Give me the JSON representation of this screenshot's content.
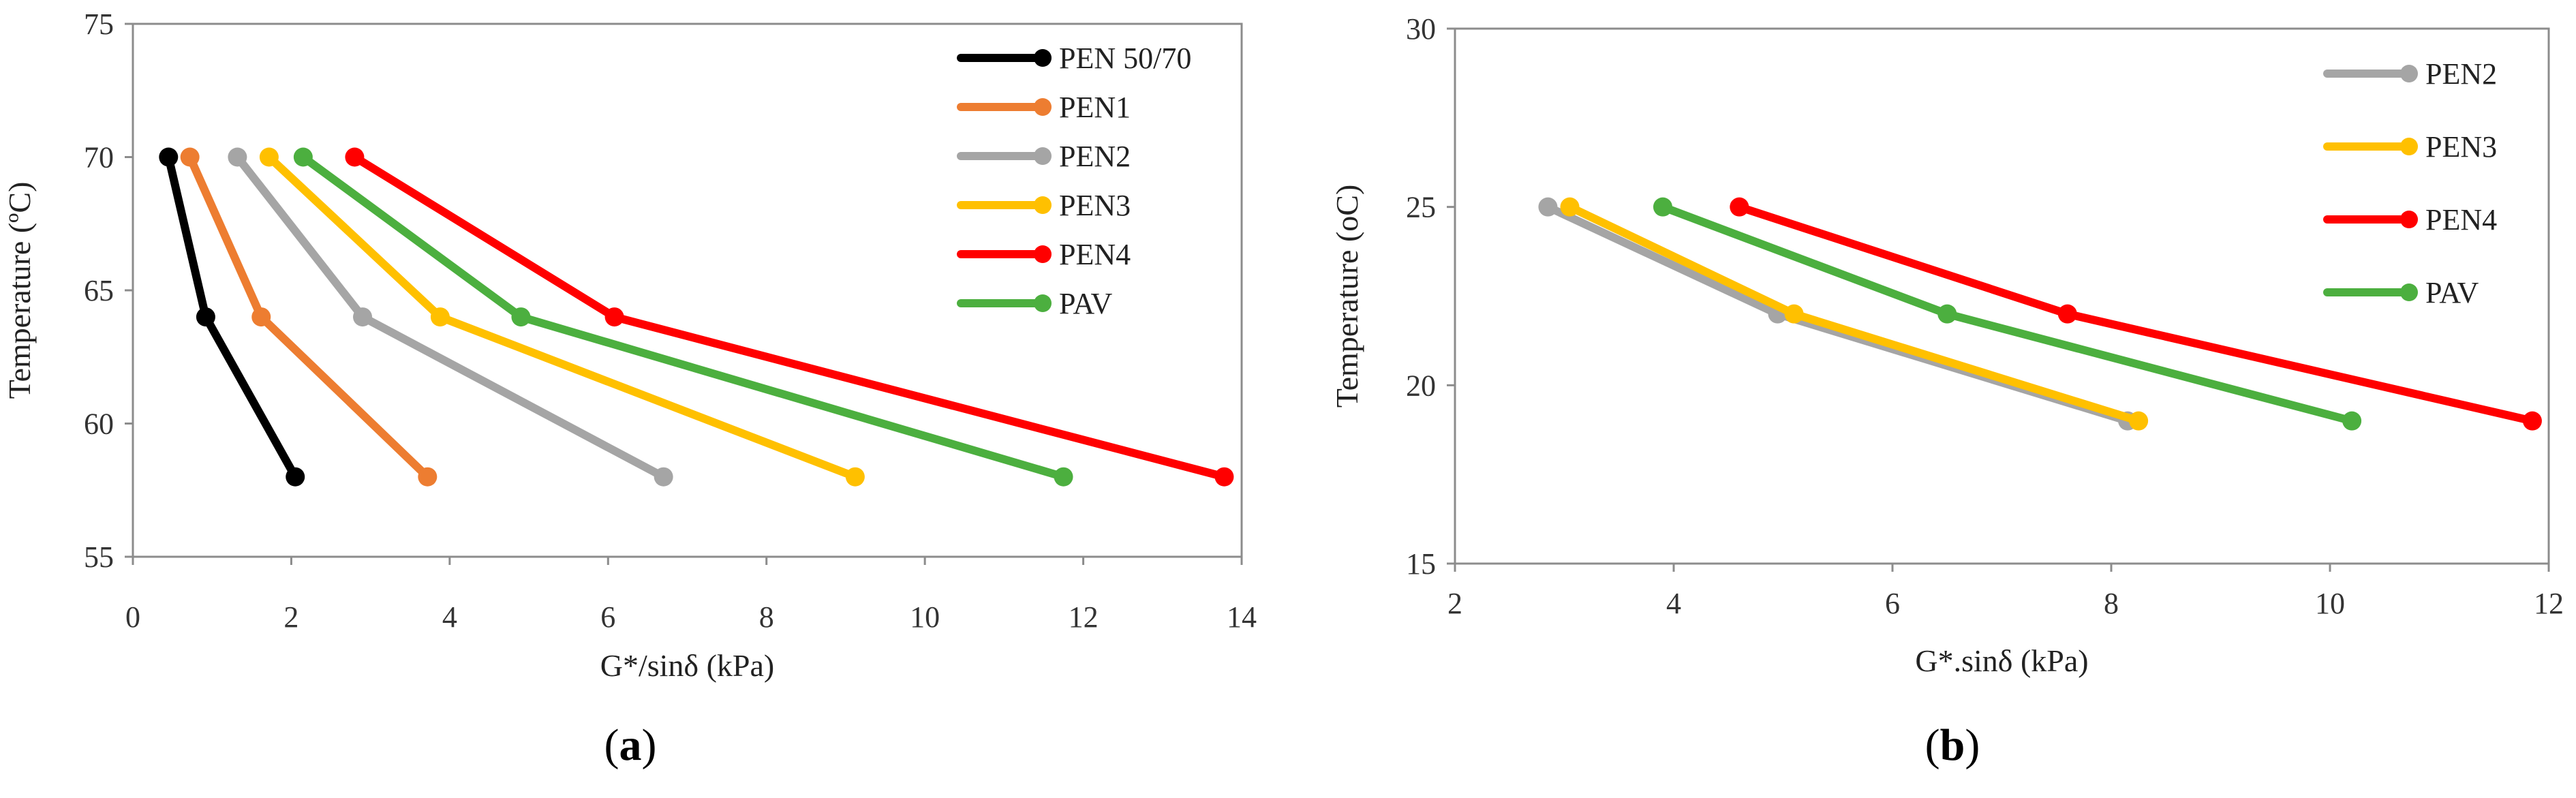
{
  "chart_data": [
    {
      "type": "line",
      "panel_label": "a",
      "xlabel": "G*/sinδ (kPa)",
      "ylabel": "Temperature (ºC)",
      "xlim": [
        0,
        14
      ],
      "ylim": [
        55,
        75
      ],
      "xticks": [
        0,
        2,
        4,
        6,
        8,
        10,
        12,
        14
      ],
      "yticks": [
        55,
        60,
        65,
        70,
        75
      ],
      "legend_position": "top-right",
      "series": [
        {
          "name": "PEN 50/70",
          "color": "#000000",
          "points": [
            [
              0.45,
              70
            ],
            [
              0.92,
              64
            ],
            [
              2.05,
              58
            ]
          ]
        },
        {
          "name": "PEN1",
          "color": "#ED7D31",
          "points": [
            [
              0.72,
              70
            ],
            [
              1.62,
              64
            ],
            [
              3.72,
              58
            ]
          ]
        },
        {
          "name": "PEN2",
          "color": "#A5A5A5",
          "points": [
            [
              1.32,
              70
            ],
            [
              2.9,
              64
            ],
            [
              6.7,
              58
            ]
          ]
        },
        {
          "name": "PEN3",
          "color": "#FFC000",
          "points": [
            [
              1.72,
              70
            ],
            [
              3.88,
              64
            ],
            [
              9.12,
              58
            ]
          ]
        },
        {
          "name": "PEN4",
          "color": "#FF0000",
          "points": [
            [
              2.8,
              70
            ],
            [
              6.08,
              64
            ],
            [
              13.78,
              58
            ]
          ]
        },
        {
          "name": "PAV",
          "color": "#4CAF3F",
          "points": [
            [
              2.15,
              70
            ],
            [
              4.9,
              64
            ],
            [
              11.75,
              58
            ]
          ]
        }
      ]
    },
    {
      "type": "line",
      "panel_label": "b",
      "xlabel": "G*.sinδ (kPa)",
      "ylabel": "Temperature (oC)",
      "xlim": [
        2,
        12
      ],
      "ylim": [
        15,
        30
      ],
      "xticks": [
        2,
        4,
        6,
        8,
        10,
        12
      ],
      "yticks": [
        15,
        20,
        25,
        30
      ],
      "legend_position": "top-right",
      "series": [
        {
          "name": "PEN2",
          "color": "#A5A5A5",
          "points": [
            [
              2.85,
              25
            ],
            [
              4.95,
              22
            ],
            [
              8.15,
              19
            ]
          ]
        },
        {
          "name": "PEN3",
          "color": "#FFC000",
          "points": [
            [
              3.05,
              25
            ],
            [
              5.1,
              22
            ],
            [
              8.25,
              19
            ]
          ]
        },
        {
          "name": "PEN4",
          "color": "#FF0000",
          "points": [
            [
              4.6,
              25
            ],
            [
              7.6,
              22
            ],
            [
              11.85,
              19
            ]
          ]
        },
        {
          "name": "PAV",
          "color": "#4CAF3F",
          "points": [
            [
              3.9,
              25
            ],
            [
              6.5,
              22
            ],
            [
              10.2,
              19
            ]
          ]
        }
      ]
    }
  ]
}
